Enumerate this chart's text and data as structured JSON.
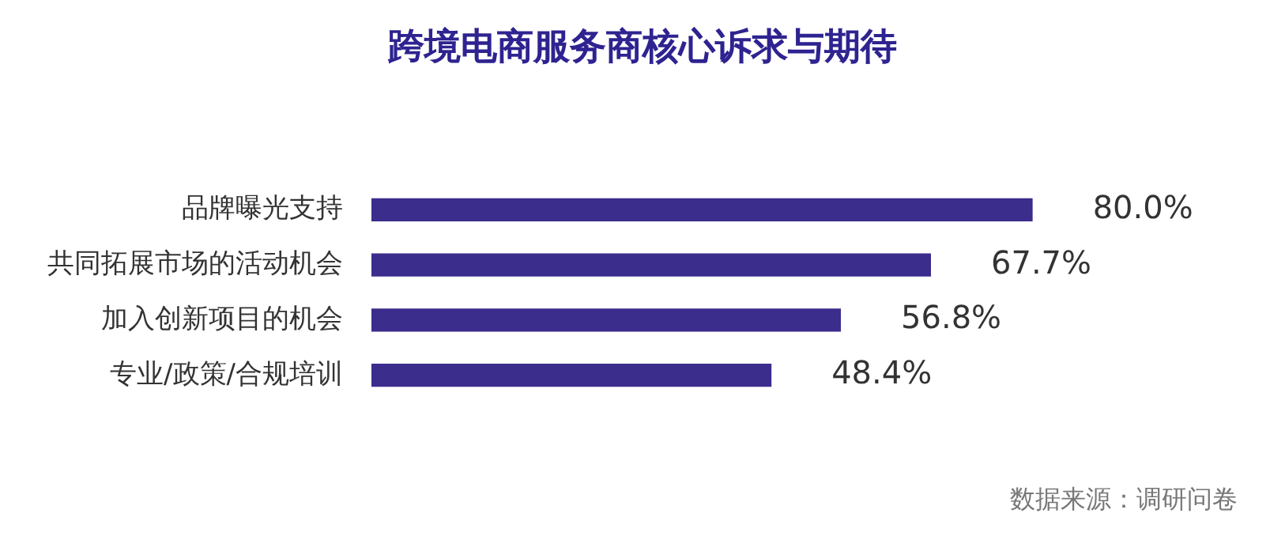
{
  "chart_data": {
    "type": "bar",
    "orientation": "horizontal",
    "title": "跨境电商服务商核心诉求与期待",
    "categories": [
      "品牌曝光支持",
      "共同拓展市场的活动机会",
      "加入创新项目的机会",
      "专业/政策/合规培训"
    ],
    "values": [
      80.0,
      67.7,
      56.8,
      48.4
    ],
    "value_labels": [
      "80.0%",
      "67.7%",
      "56.8%",
      "48.4%"
    ],
    "color": "#3a2d8c",
    "annotations": [
      "数据来源：调研问卷"
    ]
  }
}
